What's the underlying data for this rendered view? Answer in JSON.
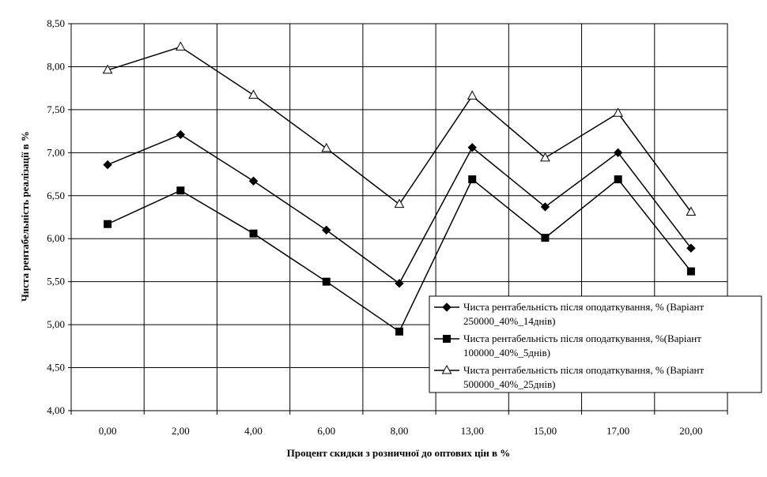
{
  "chart_data": {
    "type": "line",
    "title": "",
    "xlabel": "Процент скидки з розничної до оптових цін в %",
    "ylabel": "Чиста рентабельність реалізації в %",
    "categories": [
      "0,00",
      "2,00",
      "4,00",
      "6,00",
      "8,00",
      "13,00",
      "15,00",
      "17,00",
      "20,00"
    ],
    "ylim": [
      4.0,
      8.5
    ],
    "yticks": [
      "4,00",
      "4,50",
      "5,00",
      "5,50",
      "6,00",
      "6,50",
      "7,00",
      "7,50",
      "8,00",
      "8,50"
    ],
    "grid": true,
    "legend_position": "bottom-right",
    "series": [
      {
        "name_lines": [
          "Чиста рентабельність після оподаткування, % (Варіант",
          "250000_40%_14днів)"
        ],
        "marker": "diamond",
        "color": "#000000",
        "values": [
          6.86,
          7.21,
          6.67,
          6.1,
          5.48,
          7.06,
          6.37,
          7.0,
          5.89
        ]
      },
      {
        "name_lines": [
          "Чиста рентабельність після оподаткування, %(Варіант",
          "100000_40%_5днів)"
        ],
        "marker": "square",
        "color": "#000000",
        "values": [
          6.17,
          6.56,
          6.06,
          5.5,
          4.92,
          6.69,
          6.01,
          6.69,
          5.62
        ]
      },
      {
        "name_lines": [
          "Чиста рентабельність після оподаткування, % (Варіант",
          "500000_40%_25днів)"
        ],
        "marker": "triangle",
        "color": "#000000",
        "values": [
          7.96,
          8.23,
          7.67,
          7.05,
          6.4,
          7.66,
          6.94,
          7.46,
          6.31
        ]
      }
    ]
  }
}
